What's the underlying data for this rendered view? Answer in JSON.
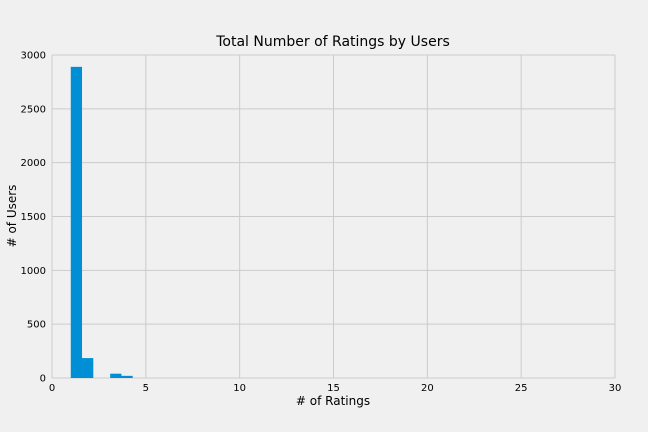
{
  "chart_data": {
    "type": "bar",
    "title": "Total Number of Ratings by Users",
    "xlabel": "# of Ratings",
    "ylabel": "# of Users",
    "xlim": [
      0,
      30
    ],
    "ylim": [
      0,
      3000
    ],
    "xticks": [
      0,
      5,
      10,
      15,
      20,
      25,
      30
    ],
    "yticks": [
      0,
      500,
      1000,
      1500,
      2000,
      2500,
      3000
    ],
    "grid": true,
    "bar_color": "#008fd5",
    "bins": [
      {
        "x0": 1.0,
        "x1": 1.6,
        "value": 2890
      },
      {
        "x0": 1.6,
        "x1": 2.2,
        "value": 185
      },
      {
        "x0": 3.1,
        "x1": 3.7,
        "value": 40
      },
      {
        "x0": 3.7,
        "x1": 4.3,
        "value": 20
      }
    ]
  }
}
